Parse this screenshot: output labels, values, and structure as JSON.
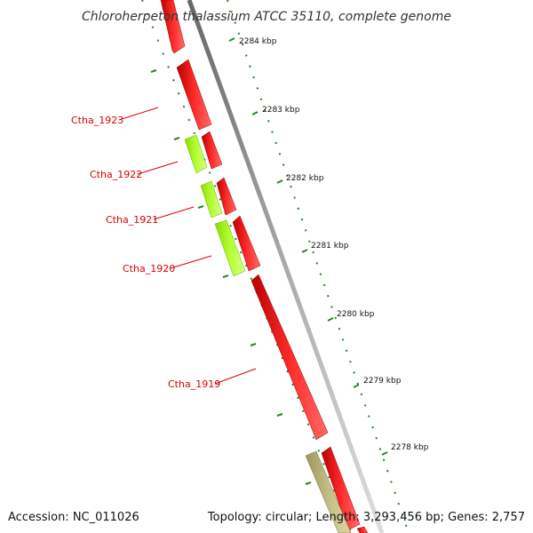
{
  "title": "Chloroherpeton thalassium ATCC 35110, complete genome",
  "footer": {
    "accession": "Accession: NC_011026",
    "topology": "Topology: circular; Length: 3,293,456 bp; Genes: 2,757"
  },
  "colors": {
    "forward_gene": "#ff0000",
    "reverse_gene": "#aaff22",
    "other_gene": "#b8b070",
    "label": "#dd0000",
    "tick": "#228822",
    "backbone": "#999999"
  },
  "scale_labels": [
    "2284 kbp",
    "2283 kbp",
    "2282 kbp",
    "2281 kbp",
    "2280 kbp",
    "2279 kbp",
    "2278 kbp"
  ],
  "gene_labels": [
    "Ctha_1923",
    "Ctha_1922",
    "Ctha_1921",
    "Ctha_1920",
    "Ctha_1919"
  ]
}
